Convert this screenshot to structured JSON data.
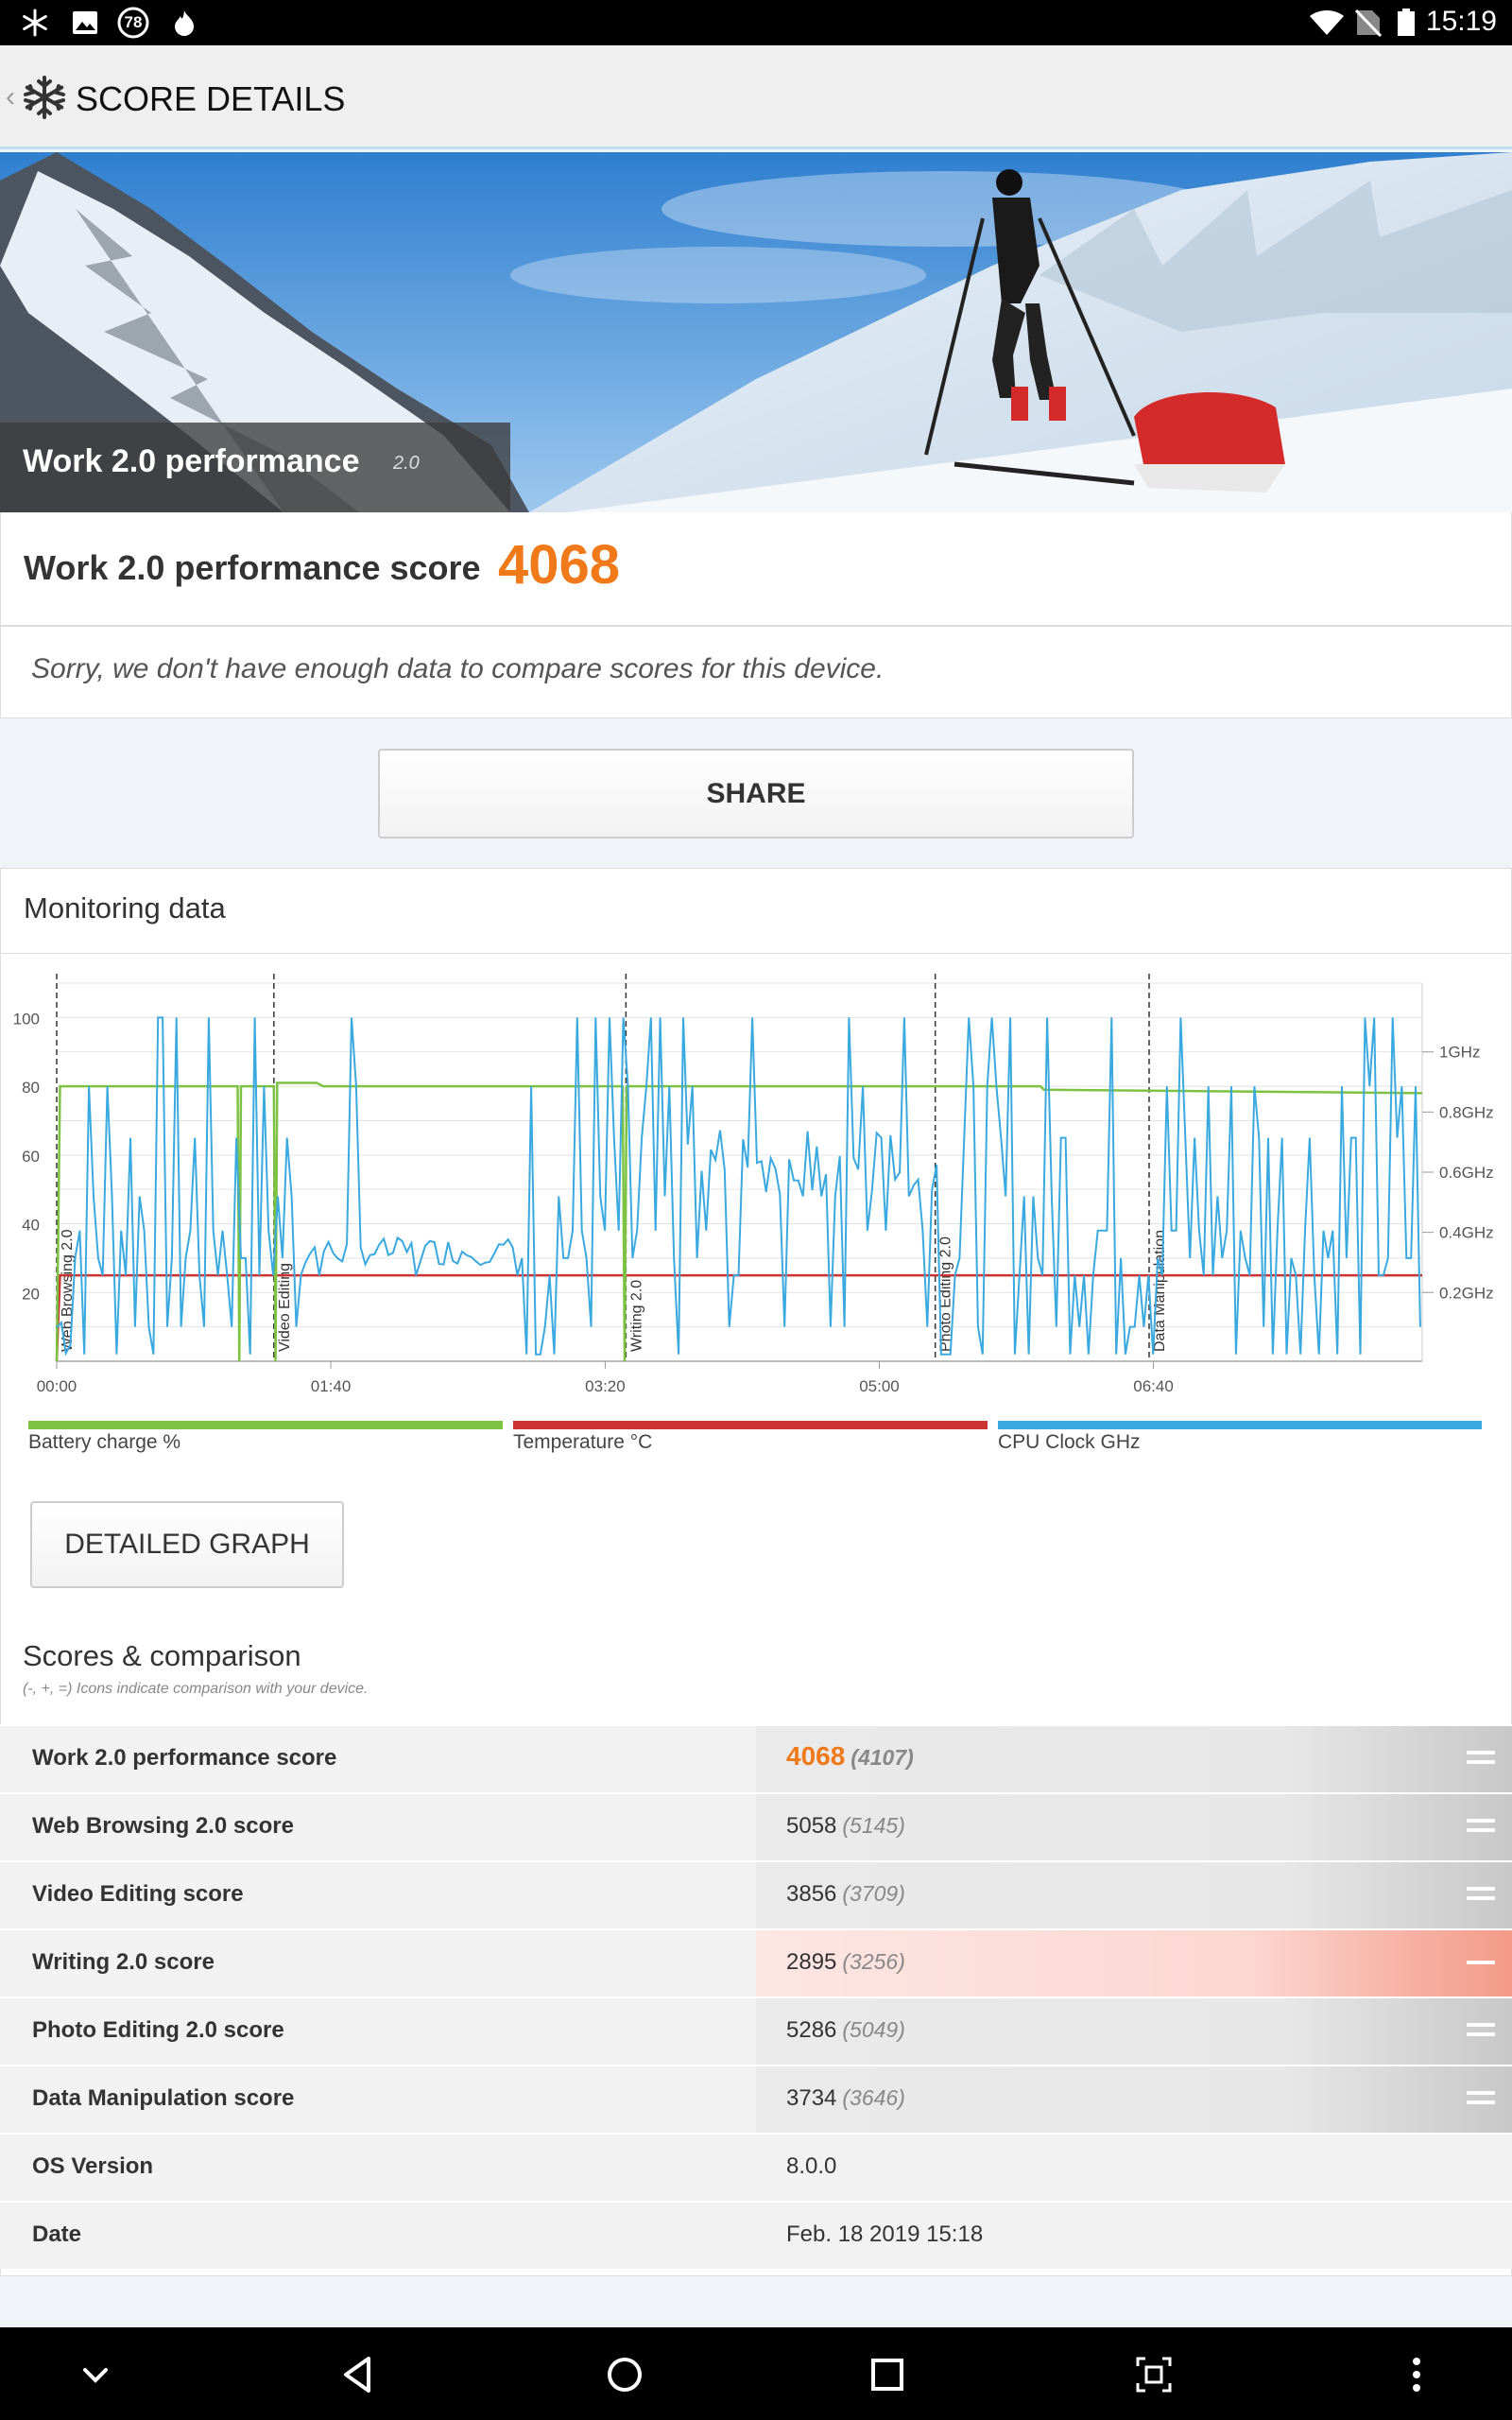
{
  "status_bar": {
    "time": "15:19",
    "notification_badge": "78",
    "icons": [
      "snowflake-icon",
      "image-icon",
      "badge-78-icon",
      "fire-icon",
      "wifi-icon",
      "no-sim-icon",
      "battery-icon"
    ]
  },
  "app_bar": {
    "title": "SCORE DETAILS",
    "back": "‹"
  },
  "hero": {
    "title": "Work 2.0 performance",
    "version": "2.0"
  },
  "score": {
    "label": "Work 2.0 performance score",
    "value": "4068"
  },
  "compare_note": "Sorry, we don't have enough data to compare scores for this device.",
  "share_label": "SHARE",
  "monitoring": {
    "title": "Monitoring data"
  },
  "chart_data": {
    "type": "line",
    "x_ticks": [
      "00:00",
      "01:40",
      "03:20",
      "05:00",
      "06:40"
    ],
    "y_left_ticks": [
      "100",
      "80",
      "60",
      "40",
      "20"
    ],
    "y_right_ticks": [
      "1GHz",
      "0.8GHz",
      "0.6GHz",
      "0.4GHz",
      "0.2GHz"
    ],
    "ylim": [
      0,
      110
    ],
    "sections": [
      {
        "label": "Web Browsing 2.0",
        "t": 0
      },
      {
        "label": "Video Editing",
        "t": 66
      },
      {
        "label": "Writing 2.0",
        "t": 173
      },
      {
        "label": "Photo Editing 2.0",
        "t": 267
      },
      {
        "label": "Data Manipulation",
        "t": 332
      }
    ],
    "legend": [
      {
        "name": "Battery charge %",
        "color": "#7dc243"
      },
      {
        "name": "Temperature °C",
        "color": "#cc3333"
      },
      {
        "name": "CPU Clock GHz",
        "color": "#3aa9e0"
      }
    ]
  },
  "detailed_graph_label": "DETAILED GRAPH",
  "scores_section": {
    "title": "Scores & comparison",
    "subtitle": "(-, +, =) Icons indicate comparison with your device."
  },
  "scores_table": [
    {
      "name": "Work 2.0 performance score",
      "value": "4068",
      "compare": "(4107)",
      "status": "equal"
    },
    {
      "name": "Web Browsing 2.0 score",
      "value": "5058",
      "compare": "(5145)",
      "status": "equal"
    },
    {
      "name": "Video Editing score",
      "value": "3856",
      "compare": "(3709)",
      "status": "equal"
    },
    {
      "name": "Writing 2.0 score",
      "value": "2895",
      "compare": "(3256)",
      "status": "minus"
    },
    {
      "name": "Photo Editing 2.0 score",
      "value": "5286",
      "compare": "(5049)",
      "status": "equal"
    },
    {
      "name": "Data Manipulation score",
      "value": "3734",
      "compare": "(3646)",
      "status": "equal"
    },
    {
      "name": "OS Version",
      "value": "8.0.0",
      "compare": "",
      "status": "none"
    },
    {
      "name": "Date",
      "value": "Feb. 18 2019 15:18",
      "compare": "",
      "status": "none"
    }
  ],
  "nav_bar": {
    "icons": [
      "chevron-down-icon",
      "back-icon",
      "home-icon",
      "recents-icon",
      "screenshot-icon",
      "more-icon"
    ]
  }
}
